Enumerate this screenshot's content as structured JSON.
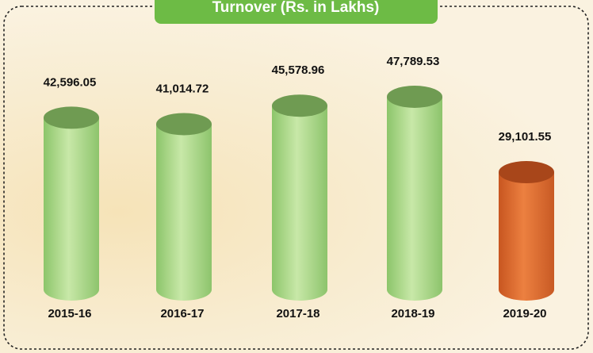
{
  "chart_data": {
    "type": "bar",
    "title": "Turnover (Rs. in Lakhs)",
    "categories": [
      "2015-16",
      "2016-17",
      "2017-18",
      "2018-19",
      "2019-20"
    ],
    "values": [
      42596.05,
      41014.72,
      45578.96,
      47789.53,
      29101.55
    ],
    "value_labels": [
      "42,596.05",
      "41,014.72",
      "45,578.96",
      "47,789.53",
      "29,101.55"
    ],
    "colors": [
      "#8cc56a",
      "#8cc56a",
      "#8cc56a",
      "#8cc56a",
      "#d9622a"
    ]
  }
}
